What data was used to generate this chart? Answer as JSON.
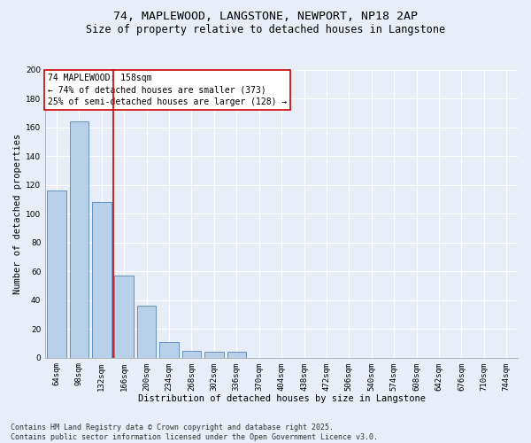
{
  "title_line1": "74, MAPLEWOOD, LANGSTONE, NEWPORT, NP18 2AP",
  "title_line2": "Size of property relative to detached houses in Langstone",
  "xlabel": "Distribution of detached houses by size in Langstone",
  "ylabel": "Number of detached properties",
  "categories": [
    "64sqm",
    "98sqm",
    "132sqm",
    "166sqm",
    "200sqm",
    "234sqm",
    "268sqm",
    "302sqm",
    "336sqm",
    "370sqm",
    "404sqm",
    "438sqm",
    "472sqm",
    "506sqm",
    "540sqm",
    "574sqm",
    "608sqm",
    "642sqm",
    "676sqm",
    "710sqm",
    "744sqm"
  ],
  "values": [
    116,
    164,
    108,
    57,
    36,
    11,
    5,
    4,
    4,
    0,
    0,
    0,
    0,
    0,
    0,
    0,
    0,
    0,
    0,
    0,
    0
  ],
  "bar_color": "#b8d0ea",
  "bar_edge_color": "#5585b5",
  "vline_color": "#cc0000",
  "annotation_text": "74 MAPLEWOOD: 158sqm\n← 74% of detached houses are smaller (373)\n25% of semi-detached houses are larger (128) →",
  "annotation_box_color": "#ffffff",
  "annotation_box_edge_color": "#cc0000",
  "ylim": [
    0,
    200
  ],
  "yticks": [
    0,
    20,
    40,
    60,
    80,
    100,
    120,
    140,
    160,
    180,
    200
  ],
  "background_color": "#e8eef8",
  "grid_color": "#ffffff",
  "footer_line1": "Contains HM Land Registry data © Crown copyright and database right 2025.",
  "footer_line2": "Contains public sector information licensed under the Open Government Licence v3.0.",
  "title_fontsize": 9.5,
  "subtitle_fontsize": 8.5,
  "axis_label_fontsize": 7.5,
  "tick_fontsize": 6.5,
  "annotation_fontsize": 7,
  "footer_fontsize": 6
}
